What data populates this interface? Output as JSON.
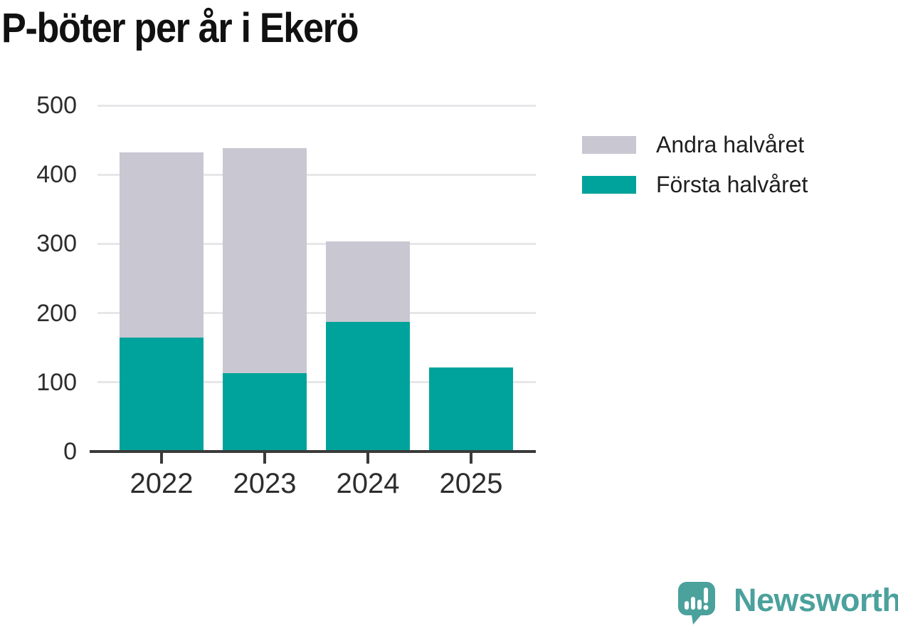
{
  "title": "P-böter per år i Ekerö",
  "colors": {
    "first_half": "#00a39b",
    "second_half": "#c9c7d1",
    "grid": "#e7e7ea",
    "axis": "#3a3a3a",
    "tick_text": "#2d2d2d",
    "title_text": "#111111",
    "legend_text": "#1f1f1f",
    "brand": "#4ba19c"
  },
  "legend": {
    "items": [
      {
        "label": "Andra halvåret",
        "color_key": "second_half"
      },
      {
        "label": "Första halvåret",
        "color_key": "first_half"
      }
    ]
  },
  "chart_data": {
    "type": "bar",
    "stacked": true,
    "title": "P-böter per år i Ekerö",
    "categories": [
      "2022",
      "2023",
      "2024",
      "2025"
    ],
    "series": [
      {
        "name": "Första halvåret",
        "color_key": "first_half",
        "values": [
          165,
          113,
          187,
          121
        ]
      },
      {
        "name": "Andra halvåret",
        "color_key": "second_half",
        "values": [
          267,
          325,
          117,
          0
        ]
      }
    ],
    "totals": [
      432,
      438,
      304,
      121
    ],
    "xlabel": "",
    "ylabel": "",
    "ylim": [
      0,
      500
    ],
    "y_ticks": [
      0,
      100,
      200,
      300,
      400,
      500
    ],
    "grid": true,
    "legend_position": "right-top"
  },
  "footer": {
    "brand_name": "Newsworthy",
    "logo_icon": "speech-bubble-bar-chart-icon"
  }
}
